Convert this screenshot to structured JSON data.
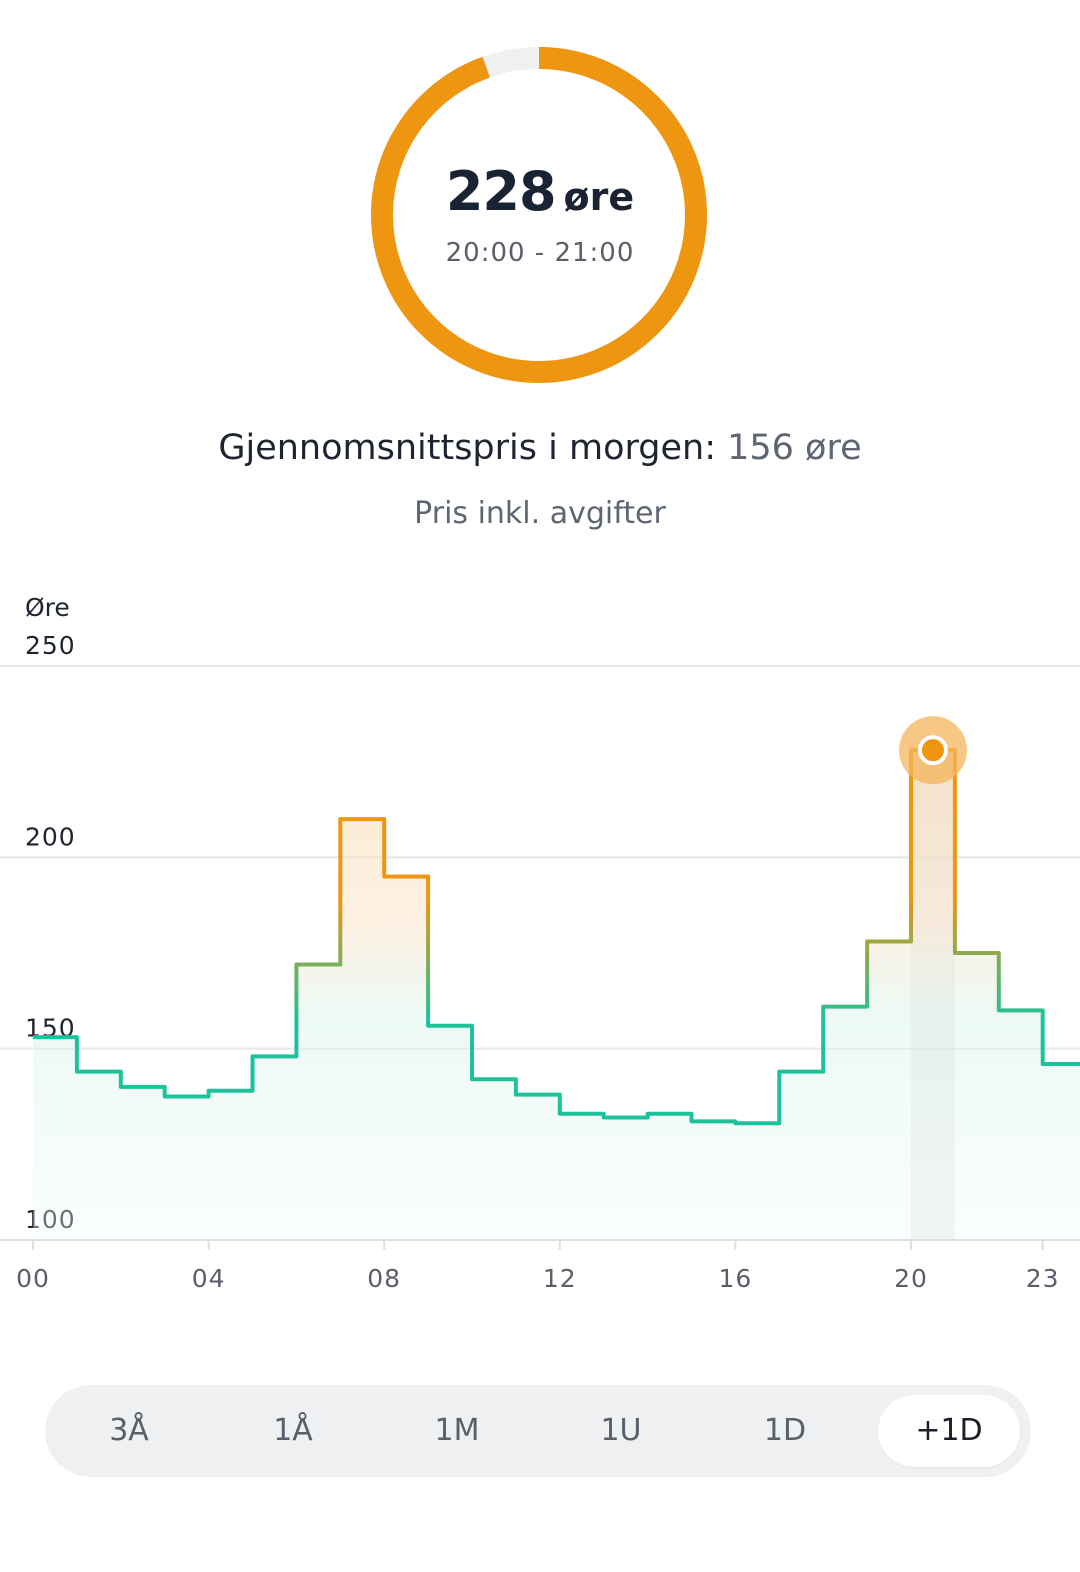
{
  "current_price": {
    "value": "228",
    "unit": "øre",
    "time_range": "20:00 - 21:00",
    "gauge_fraction": 0.945,
    "gauge_color": "#ee9610",
    "gauge_track_color": "#f0f0f0"
  },
  "average": {
    "label": "Gjennomsnittspris i morgen:",
    "value": "156 øre"
  },
  "tax_note": "Pris inkl. avgifter",
  "chart_data": {
    "type": "line",
    "step": true,
    "ylabel": "Øre",
    "ylim": [
      100,
      250
    ],
    "yticks": [
      "100",
      "150",
      "200",
      "250"
    ],
    "xticks": [
      "00",
      "04",
      "08",
      "12",
      "16",
      "20",
      "23"
    ],
    "grid": true,
    "hours": [
      0,
      1,
      2,
      3,
      4,
      5,
      6,
      7,
      8,
      9,
      10,
      11,
      12,
      13,
      14,
      15,
      16,
      17,
      18,
      19,
      20,
      21,
      22,
      23
    ],
    "values": [
      153,
      144,
      140,
      137.5,
      139,
      148,
      172,
      210,
      195,
      156,
      142,
      138,
      133,
      132,
      133,
      131,
      130.5,
      144,
      161,
      178,
      228,
      175,
      160,
      146
    ],
    "highlight_hour": 20,
    "colors": {
      "low": "#1cc39a",
      "high": "#ee9610"
    }
  },
  "range_selector": {
    "options": [
      "3Å",
      "1Å",
      "1M",
      "1U",
      "1D",
      "+1D"
    ],
    "selected": "+1D"
  }
}
